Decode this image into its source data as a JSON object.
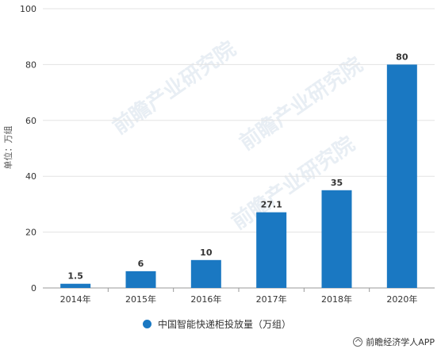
{
  "chart_data": {
    "type": "bar",
    "categories": [
      "2014年",
      "2015年",
      "2016年",
      "2017年",
      "2018年",
      "2020年"
    ],
    "values": [
      1.5,
      6,
      10,
      27.1,
      35,
      80
    ],
    "value_labels": [
      "1.5",
      "6",
      "10",
      "27.1",
      "35",
      "80"
    ],
    "ylabel": "单位：万组",
    "ylim": [
      0,
      100
    ],
    "yticks": [
      0,
      20,
      40,
      60,
      80,
      100
    ],
    "grid": true,
    "bar_color": "#1a78c2",
    "legend_position": "bottom",
    "series": [
      {
        "name": "中国智能快递柜投放量（万组）",
        "values": [
          1.5,
          6,
          10,
          27.1,
          35,
          80
        ]
      }
    ]
  },
  "watermark": {
    "text": "前瞻产业研究院"
  },
  "credit": {
    "text": "前瞻经济学人APP"
  }
}
